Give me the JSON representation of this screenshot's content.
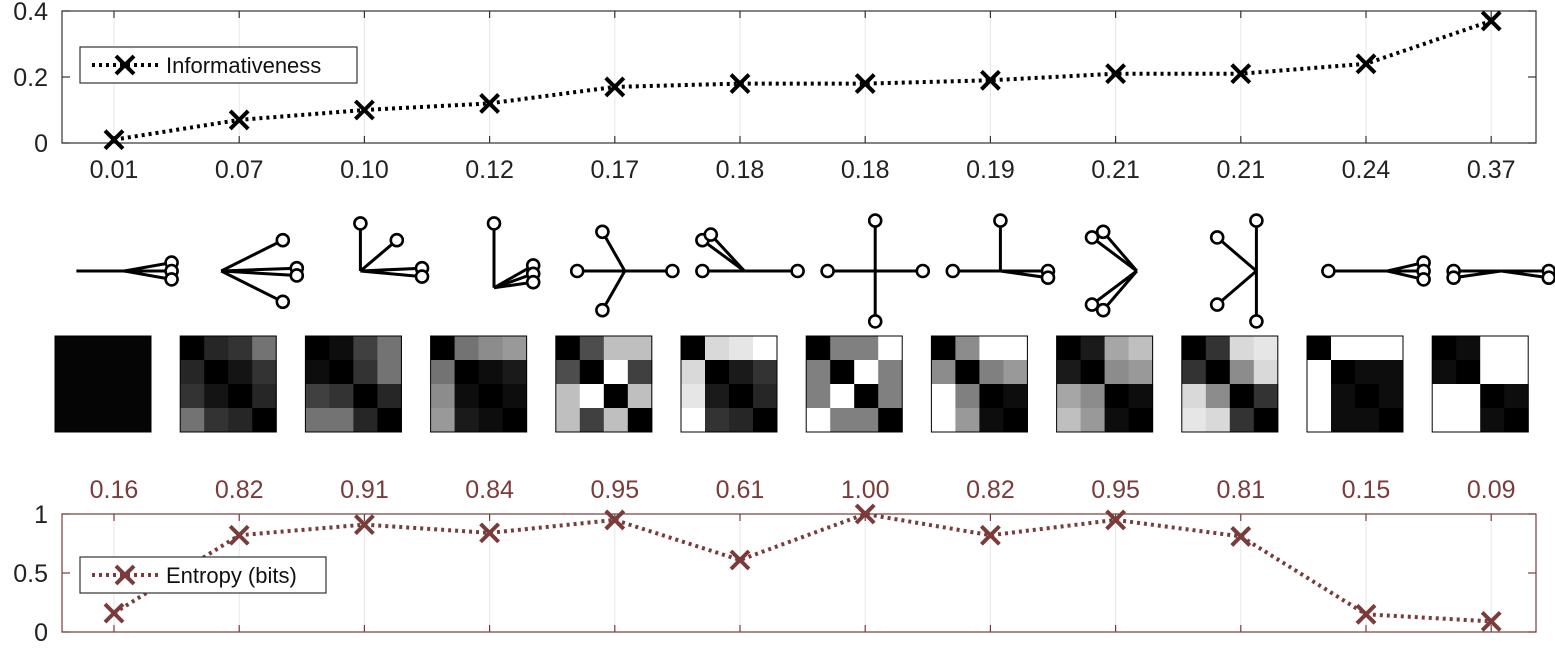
{
  "chart_data": [
    {
      "type": "line",
      "x": [
        1,
        2,
        3,
        4,
        5,
        6,
        7,
        8,
        9,
        10,
        11,
        12
      ],
      "values": [
        0.01,
        0.07,
        0.1,
        0.12,
        0.17,
        0.18,
        0.18,
        0.19,
        0.21,
        0.21,
        0.24,
        0.37
      ],
      "value_labels": [
        "0.01",
        "0.07",
        "0.10",
        "0.12",
        "0.17",
        "0.18",
        "0.18",
        "0.19",
        "0.21",
        "0.21",
        "0.24",
        "0.37"
      ],
      "series_name": "Informativeness",
      "ylim": [
        0,
        0.4
      ],
      "yticks": [
        "0",
        "0.2",
        "0.4"
      ],
      "grid": "vertical",
      "legend": "top-left",
      "color": "#000000"
    },
    {
      "type": "line",
      "x": [
        1,
        2,
        3,
        4,
        5,
        6,
        7,
        8,
        9,
        10,
        11,
        12
      ],
      "values": [
        0.16,
        0.82,
        0.91,
        0.84,
        0.95,
        0.61,
        1.0,
        0.82,
        0.95,
        0.81,
        0.15,
        0.09
      ],
      "value_labels": [
        "0.16",
        "0.82",
        "0.91",
        "0.84",
        "0.95",
        "0.61",
        "1.00",
        "0.82",
        "0.95",
        "0.81",
        "0.15",
        "0.09"
      ],
      "series_name": "Entropy (bits)",
      "ylim": [
        0,
        1
      ],
      "yticks": [
        "0",
        "0.5",
        "1"
      ],
      "grid": "vertical",
      "legend": "middle-left",
      "color": "#7a3b3b"
    }
  ],
  "glyphs": {
    "description_per_column": [
      {
        "leaves": [
          [
            0.85,
            -0.15
          ],
          [
            0.85,
            0
          ],
          [
            0.85,
            0.15
          ]
        ],
        "center": [
          0,
          0
        ],
        "left": [
          -0.85,
          0
        ]
      },
      {
        "leaves": [
          [
            0.6,
            -0.55
          ],
          [
            0.85,
            -0.05
          ],
          [
            0.85,
            0.08
          ],
          [
            0.6,
            0.55
          ]
        ],
        "center": [
          -0.5,
          0
        ]
      },
      {
        "leaves": [
          [
            -0.25,
            -0.85
          ],
          [
            0.4,
            -0.55
          ],
          [
            0.85,
            -0.05
          ],
          [
            0.85,
            0.1
          ]
        ],
        "center": [
          -0.25,
          0
        ]
      },
      {
        "leaves": [
          [
            -0.1,
            -0.85
          ],
          [
            0.6,
            -0.1
          ],
          [
            0.6,
            0.05
          ],
          [
            0.6,
            0.2
          ]
        ],
        "center": [
          -0.1,
          0.3
        ]
      },
      {
        "leaves": [
          [
            -0.85,
            0
          ],
          [
            0.85,
            0
          ],
          [
            -0.4,
            -0.7
          ],
          [
            -0.4,
            0.7
          ]
        ],
        "center": [
          0,
          0
        ]
      },
      {
        "leaves": [
          [
            -0.85,
            -0.55
          ],
          [
            -0.7,
            -0.65
          ],
          [
            0.85,
            0
          ]
        ],
        "center": [
          -0.85,
          0
        ],
        "hub": [
          -0.1,
          0
        ]
      },
      {
        "leaves": [
          [
            -0.85,
            0
          ],
          [
            0.85,
            0
          ],
          [
            0,
            -0.9
          ],
          [
            0,
            0.9
          ]
        ],
        "center": [
          0,
          0
        ]
      },
      {
        "leaves": [
          [
            -0.85,
            0
          ],
          [
            0,
            -0.9
          ],
          [
            0.85,
            0
          ],
          [
            0.85,
            0.12
          ]
        ],
        "center": [
          0,
          0
        ]
      },
      {
        "leaves": [
          [
            -0.6,
            -0.6
          ],
          [
            -0.4,
            -0.7
          ],
          [
            -0.6,
            0.6
          ],
          [
            -0.4,
            0.7
          ]
        ],
        "center": [
          0.2,
          0
        ]
      },
      {
        "leaves": [
          [
            -0.6,
            -0.6
          ],
          [
            0.1,
            -0.9
          ],
          [
            -0.6,
            0.6
          ],
          [
            0.1,
            0.9
          ]
        ],
        "center": [
          0.1,
          0
        ]
      },
      {
        "leaves": [
          [
            -0.85,
            0
          ],
          [
            0.85,
            -0.15
          ],
          [
            0.85,
            0
          ],
          [
            0.85,
            0.15
          ]
        ],
        "center": [
          0.2,
          0
        ]
      },
      {
        "leaves": [
          [
            -0.85,
            0
          ],
          [
            -0.85,
            0.12
          ],
          [
            0.85,
            0
          ],
          [
            0.85,
            0.12
          ]
        ],
        "center": [
          0,
          0
        ]
      }
    ]
  },
  "matrices": [
    [
      [
        0.02,
        0.02,
        0.02,
        0.02
      ],
      [
        0.02,
        0.02,
        0.02,
        0.02
      ],
      [
        0.02,
        0.02,
        0.02,
        0.02
      ],
      [
        0.02,
        0.02,
        0.02,
        0.02
      ]
    ],
    [
      [
        0.0,
        0.15,
        0.2,
        0.45
      ],
      [
        0.15,
        0.0,
        0.08,
        0.2
      ],
      [
        0.2,
        0.08,
        0.0,
        0.15
      ],
      [
        0.45,
        0.2,
        0.15,
        0.0
      ]
    ],
    [
      [
        0.0,
        0.05,
        0.25,
        0.45
      ],
      [
        0.05,
        0.0,
        0.2,
        0.45
      ],
      [
        0.25,
        0.2,
        0.0,
        0.15
      ],
      [
        0.45,
        0.45,
        0.15,
        0.0
      ]
    ],
    [
      [
        0.0,
        0.45,
        0.55,
        0.6
      ],
      [
        0.45,
        0.0,
        0.05,
        0.1
      ],
      [
        0.55,
        0.05,
        0.0,
        0.05
      ],
      [
        0.6,
        0.1,
        0.05,
        0.0
      ]
    ],
    [
      [
        0.0,
        0.3,
        0.75,
        0.75
      ],
      [
        0.3,
        0.0,
        1.0,
        0.25
      ],
      [
        0.75,
        1.0,
        0.0,
        0.75
      ],
      [
        0.75,
        0.25,
        0.75,
        0.0
      ]
    ],
    [
      [
        0.0,
        0.85,
        0.9,
        1.0
      ],
      [
        0.85,
        0.0,
        0.1,
        0.2
      ],
      [
        0.9,
        0.1,
        0.0,
        0.15
      ],
      [
        1.0,
        0.2,
        0.15,
        0.0
      ]
    ],
    [
      [
        0.0,
        0.5,
        0.5,
        1.0
      ],
      [
        0.5,
        0.0,
        1.0,
        0.5
      ],
      [
        0.5,
        1.0,
        0.0,
        0.5
      ],
      [
        1.0,
        0.5,
        0.5,
        0.0
      ]
    ],
    [
      [
        0.0,
        0.55,
        1.0,
        1.0
      ],
      [
        0.55,
        0.0,
        0.5,
        0.6
      ],
      [
        1.0,
        0.5,
        0.0,
        0.05
      ],
      [
        1.0,
        0.6,
        0.05,
        0.0
      ]
    ],
    [
      [
        0.0,
        0.1,
        0.65,
        0.75
      ],
      [
        0.1,
        0.0,
        0.55,
        0.6
      ],
      [
        0.65,
        0.55,
        0.0,
        0.05
      ],
      [
        0.75,
        0.6,
        0.05,
        0.0
      ]
    ],
    [
      [
        0.0,
        0.2,
        0.85,
        0.9
      ],
      [
        0.2,
        0.0,
        0.55,
        0.85
      ],
      [
        0.85,
        0.55,
        0.0,
        0.2
      ],
      [
        0.9,
        0.85,
        0.2,
        0.0
      ]
    ],
    [
      [
        0.0,
        1.0,
        1.0,
        1.0
      ],
      [
        1.0,
        0.0,
        0.05,
        0.05
      ],
      [
        1.0,
        0.05,
        0.0,
        0.05
      ],
      [
        1.0,
        0.05,
        0.05,
        0.0
      ]
    ],
    [
      [
        0.0,
        0.05,
        1.0,
        1.0
      ],
      [
        0.05,
        0.0,
        1.0,
        1.0
      ],
      [
        1.0,
        1.0,
        0.0,
        0.05
      ],
      [
        1.0,
        1.0,
        0.05,
        0.0
      ]
    ]
  ]
}
